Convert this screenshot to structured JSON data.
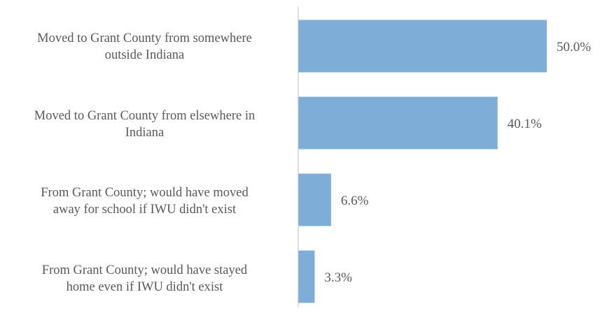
{
  "chart_data": {
    "type": "bar",
    "orientation": "horizontal",
    "title": "",
    "xlabel": "",
    "ylabel": "",
    "categories": [
      "Moved to Grant County from somewhere\noutside Indiana",
      "Moved to Grant County from elsewhere in\nIndiana",
      "From Grant County; would have moved\naway for school if IWU didn't exist",
      "From Grant County; would have stayed\nhome even if IWU didn't exist"
    ],
    "values": [
      50.0,
      40.1,
      6.6,
      3.3
    ],
    "data_labels": [
      "50.0%",
      "40.1%",
      "6.6%",
      "3.3%"
    ],
    "xlim": [
      0,
      60
    ],
    "grid": false,
    "legend": "none",
    "bar_color": "#7EADD8",
    "axis_color": "#BFBFBF"
  }
}
